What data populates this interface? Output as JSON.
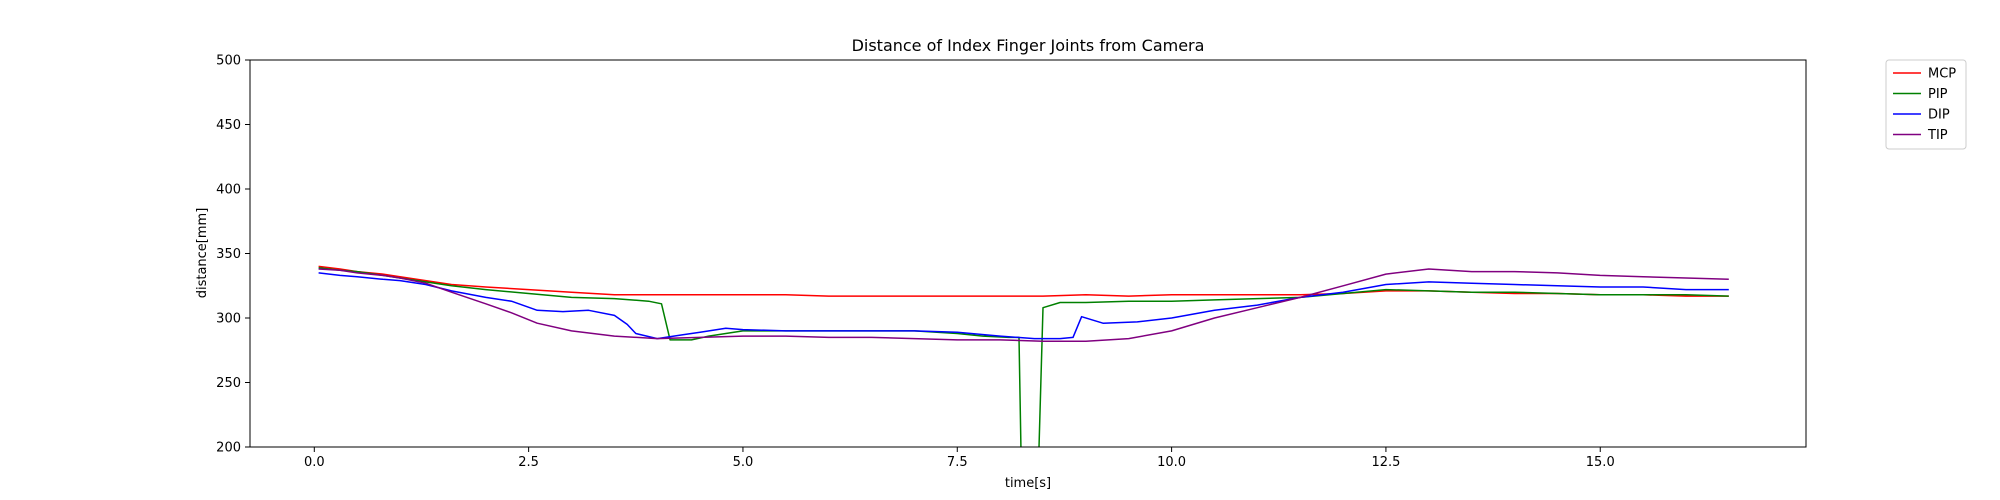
{
  "chart_data": {
    "type": "line",
    "title": "Distance of Index Finger Joints from Camera",
    "xlabel": "time[s]",
    "ylabel": "distance[mm]",
    "xlim": [
      -0.75,
      17.4
    ],
    "ylim": [
      200,
      500
    ],
    "xticks": [
      0.0,
      2.5,
      5.0,
      7.5,
      10.0,
      12.5,
      15.0
    ],
    "xtick_labels": [
      "0.0",
      "2.5",
      "5.0",
      "7.5",
      "10.0",
      "12.5",
      "15.0"
    ],
    "yticks": [
      200,
      250,
      300,
      350,
      400,
      450,
      500
    ],
    "ytick_labels": [
      "200",
      "250",
      "300",
      "350",
      "400",
      "450",
      "500"
    ],
    "grid": false,
    "legend_position": "outside-top-right",
    "series": [
      {
        "name": "MCP",
        "color": "#ff0000",
        "x": [
          0.05,
          0.3,
          0.5,
          0.8,
          1.0,
          1.3,
          1.6,
          2.0,
          2.5,
          3.0,
          3.5,
          4.0,
          4.5,
          5.0,
          5.5,
          6.0,
          6.5,
          7.0,
          7.5,
          8.0,
          8.5,
          9.0,
          9.5,
          10.0,
          10.5,
          11.0,
          11.5,
          12.0,
          12.5,
          13.0,
          13.5,
          14.0,
          14.5,
          15.0,
          15.5,
          16.0,
          16.5
        ],
        "y": [
          340,
          338,
          336,
          334,
          332,
          329,
          326,
          324,
          322,
          320,
          318,
          318,
          318,
          318,
          318,
          317,
          317,
          317,
          317,
          317,
          317,
          318,
          317,
          318,
          318,
          318,
          318,
          319,
          321,
          321,
          320,
          319,
          319,
          318,
          318,
          317,
          317
        ]
      },
      {
        "name": "PIP",
        "color": "#008000",
        "x": [
          0.05,
          0.3,
          0.5,
          0.8,
          1.0,
          1.3,
          1.6,
          2.0,
          2.5,
          3.0,
          3.5,
          3.9,
          4.05,
          4.15,
          4.4,
          4.6,
          5.0,
          5.5,
          6.0,
          6.5,
          7.0,
          7.5,
          7.8,
          8.1,
          8.22,
          8.25,
          8.44,
          8.5,
          8.7,
          9.0,
          9.5,
          10.0,
          10.5,
          11.0,
          11.5,
          12.0,
          12.5,
          13.0,
          13.5,
          14.0,
          14.5,
          15.0,
          15.5,
          16.0,
          16.5
        ],
        "y": [
          339,
          337,
          336,
          333,
          331,
          328,
          325,
          322,
          319,
          316,
          315,
          313,
          311,
          283,
          283,
          286,
          290,
          290,
          290,
          290,
          290,
          288,
          286,
          285,
          285,
          170,
          170,
          308,
          312,
          312,
          313,
          313,
          314,
          315,
          316,
          319,
          322,
          321,
          320,
          320,
          319,
          318,
          318,
          318,
          317
        ]
      },
      {
        "name": "DIP",
        "color": "#0000ff",
        "x": [
          0.05,
          0.3,
          0.5,
          0.8,
          1.0,
          1.3,
          1.6,
          2.0,
          2.3,
          2.6,
          2.9,
          3.2,
          3.5,
          3.65,
          3.75,
          4.0,
          4.3,
          4.5,
          4.8,
          5.0,
          5.5,
          6.0,
          6.5,
          7.0,
          7.5,
          8.0,
          8.4,
          8.7,
          8.85,
          8.95,
          9.2,
          9.6,
          10.0,
          10.5,
          11.0,
          11.5,
          12.0,
          12.5,
          13.0,
          13.5,
          14.0,
          14.5,
          15.0,
          15.5,
          16.0,
          16.5
        ],
        "y": [
          335,
          333,
          332,
          330,
          329,
          326,
          321,
          316,
          313,
          306,
          305,
          306,
          302,
          295,
          288,
          284,
          287,
          289,
          292,
          291,
          290,
          290,
          290,
          290,
          289,
          286,
          284,
          284,
          285,
          301,
          296,
          297,
          300,
          306,
          310,
          316,
          320,
          326,
          328,
          327,
          326,
          325,
          324,
          324,
          322,
          322
        ]
      },
      {
        "name": "TIP",
        "color": "#800080",
        "x": [
          0.05,
          0.3,
          0.5,
          0.8,
          1.0,
          1.3,
          1.6,
          2.0,
          2.3,
          2.6,
          3.0,
          3.5,
          4.0,
          4.5,
          5.0,
          5.5,
          6.0,
          6.5,
          7.0,
          7.5,
          8.0,
          8.5,
          9.0,
          9.5,
          10.0,
          10.5,
          11.0,
          11.5,
          12.0,
          12.5,
          13.0,
          13.5,
          14.0,
          14.5,
          15.0,
          15.5,
          16.0,
          16.5
        ],
        "y": [
          338,
          337,
          335,
          333,
          331,
          327,
          320,
          311,
          304,
          296,
          290,
          286,
          284,
          285,
          286,
          286,
          285,
          285,
          284,
          283,
          283,
          282,
          282,
          284,
          290,
          300,
          308,
          316,
          325,
          334,
          338,
          336,
          336,
          335,
          333,
          332,
          331,
          330
        ]
      }
    ]
  }
}
